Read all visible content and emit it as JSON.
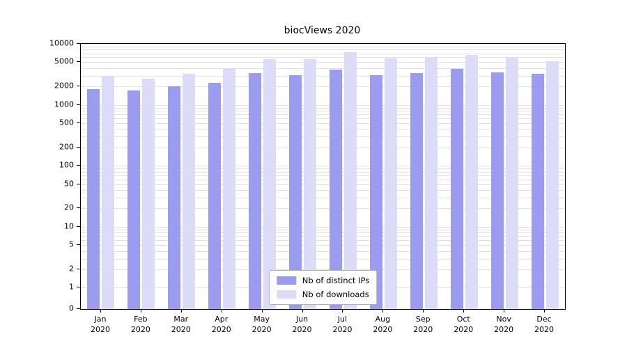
{
  "chart_data": {
    "type": "bar",
    "title": "biocViews 2020",
    "categories": [
      "Jan 2020",
      "Feb 2020",
      "Mar 2020",
      "Apr 2020",
      "May 2020",
      "Jun 2020",
      "Jul 2020",
      "Aug 2020",
      "Sep 2020",
      "Oct 2020",
      "Nov 2020",
      "Dec 2020"
    ],
    "series": [
      {
        "name": "Nb of distinct IPs",
        "color": "#9b9bef",
        "values": [
          1800,
          1700,
          2000,
          2300,
          3300,
          3100,
          3800,
          3100,
          3300,
          3900,
          3400,
          3200
        ]
      },
      {
        "name": "Nb of downloads",
        "color": "#dcdcf9",
        "values": [
          3000,
          2700,
          3200,
          4000,
          5600,
          5600,
          7300,
          5700,
          6100,
          6600,
          5900,
          5200
        ]
      }
    ],
    "y_ticks": [
      10000,
      5000,
      2000,
      1000,
      500,
      200,
      100,
      50,
      20,
      10,
      5,
      2,
      1,
      0
    ],
    "y_scale": "log",
    "ylim": [
      0,
      10000
    ],
    "xlabel": "",
    "ylabel": "",
    "grid": true,
    "legend_position": "bottom-center-inside"
  }
}
